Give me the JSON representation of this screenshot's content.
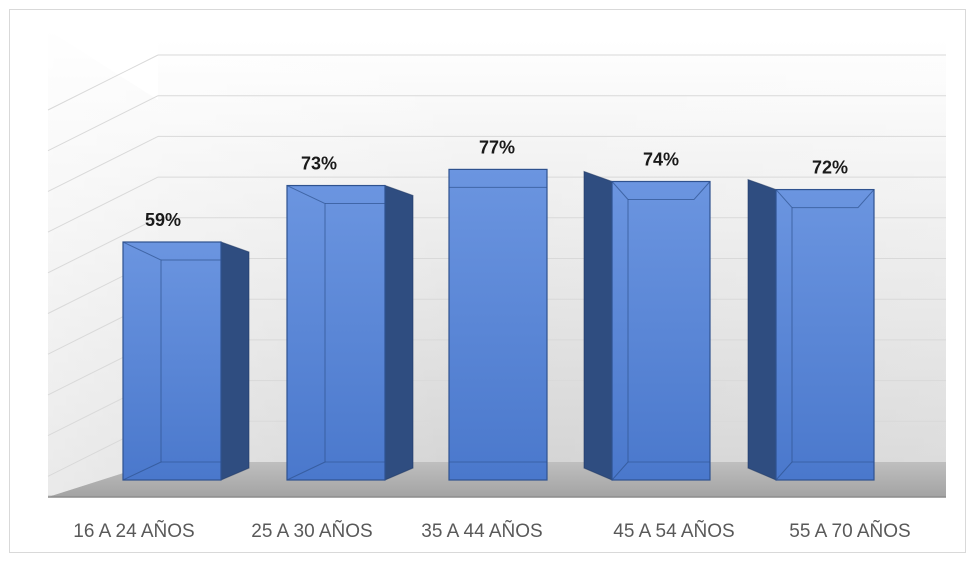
{
  "chart_data": {
    "type": "bar",
    "style": "3d-column",
    "categories": [
      "16 A 24 AÑOS",
      "25 A 30 AÑOS",
      "35 A 44 AÑOS",
      "45 A 54 AÑOS",
      "55 A 70 AÑOS"
    ],
    "values": [
      59,
      73,
      77,
      74,
      72
    ],
    "value_labels": [
      "59%",
      "73%",
      "77%",
      "74%",
      "72%"
    ],
    "title": "",
    "xlabel": "",
    "ylabel": "",
    "ylim": [
      0,
      100
    ],
    "grid": true,
    "legend": "none",
    "colors": {
      "bar_front": "#4472c4",
      "bar_side": "#2f4d80",
      "bar_top": "#5b86d6",
      "wall_light": "#ffffff",
      "wall_dark": "#d6d6d6",
      "floor": "#a6a6a6",
      "gridline": "#d9d9d9"
    }
  }
}
